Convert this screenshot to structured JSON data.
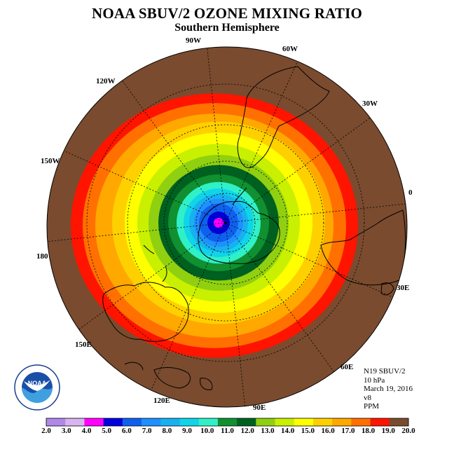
{
  "title": "NOAA SBUV/2 OZONE MIXING RATIO",
  "subtitle": "Southern Hemisphere",
  "longitude_labels": [
    "90W",
    "60W",
    "30W",
    "0",
    "30E",
    "60E",
    "90E",
    "120E",
    "150E",
    "180",
    "150W",
    "120W"
  ],
  "info": {
    "instrument": "N19 SBUV/2",
    "level": "10 hPa",
    "date": "March 19, 2016",
    "version": "v8",
    "units": "PPM"
  },
  "logo_text": "NOAA",
  "colorbar": {
    "ticks": [
      "2.0",
      "3.0",
      "4.0",
      "5.0",
      "6.0",
      "7.0",
      "8.0",
      "9.0",
      "10.0",
      "11.0",
      "12.0",
      "13.0",
      "14.0",
      "15.0",
      "16.0",
      "17.0",
      "18.0",
      "19.0",
      "20.0"
    ],
    "colors": [
      "#b088e8",
      "#d8b4f0",
      "#ff00ff",
      "#0000dd",
      "#1060ee",
      "#1e90ff",
      "#18b0f0",
      "#10d4e8",
      "#30f0c8",
      "#109030",
      "#006020",
      "#90d010",
      "#c8f000",
      "#ffff00",
      "#ffd000",
      "#ffa800",
      "#ff7000",
      "#ff1400",
      "#7a4b2e"
    ]
  }
}
